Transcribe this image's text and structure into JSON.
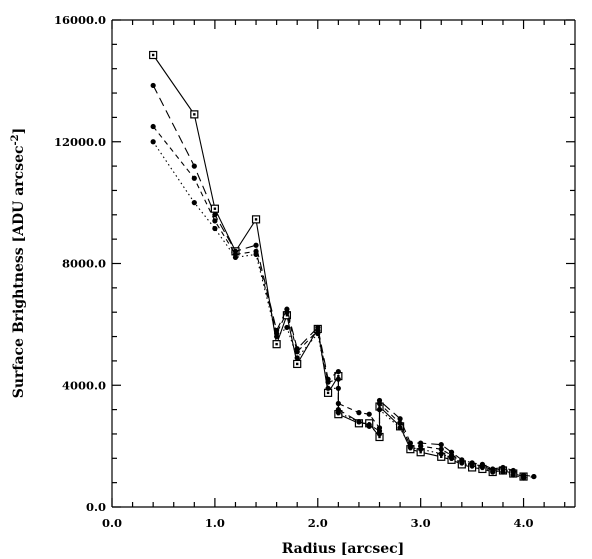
{
  "chart_data": {
    "type": "line",
    "xlabel": "Radius [arcsec]",
    "ylabel": "Surface Brightness [ADU arcsec",
    "ylabel_sup": "-2",
    "ylabel_end": "]",
    "xlim": [
      0,
      4.5
    ],
    "ylim": [
      0,
      16000
    ],
    "x_ticks": [
      0,
      1,
      2,
      3,
      4
    ],
    "x_tick_labels": [
      "0.0",
      "1.0",
      "2.0",
      "3.0",
      "4.0"
    ],
    "y_ticks": [
      0,
      4000,
      8000,
      12000,
      16000
    ],
    "y_tick_labels": [
      "0.0",
      "4000.0",
      "8000.0",
      "12000.0",
      "16000.0"
    ],
    "grid": false,
    "series": [
      {
        "style": "solid",
        "marker": "square",
        "points": [
          [
            0.4,
            14850
          ],
          [
            0.8,
            12900
          ],
          [
            1.0,
            9800
          ],
          [
            1.2,
            8400
          ],
          [
            1.4,
            9450
          ],
          [
            1.6,
            5350
          ],
          [
            1.7,
            6300
          ],
          [
            1.8,
            4700
          ],
          [
            2.0,
            5850
          ],
          [
            2.1,
            3750
          ],
          [
            2.2,
            4300
          ],
          [
            2.2,
            3050
          ],
          [
            2.4,
            2750
          ],
          [
            2.5,
            2750
          ],
          [
            2.6,
            2300
          ],
          [
            2.6,
            3300
          ],
          [
            2.8,
            2650
          ],
          [
            2.9,
            1900
          ],
          [
            3.0,
            1800
          ],
          [
            3.2,
            1650
          ],
          [
            3.3,
            1550
          ],
          [
            3.4,
            1400
          ],
          [
            3.5,
            1300
          ],
          [
            3.6,
            1250
          ],
          [
            3.7,
            1150
          ],
          [
            3.8,
            1200
          ],
          [
            3.9,
            1100
          ],
          [
            4.0,
            1000
          ]
        ]
      },
      {
        "style": "longdash",
        "marker": "dot",
        "points": [
          [
            0.4,
            13850
          ],
          [
            0.8,
            11200
          ],
          [
            1.0,
            9600
          ],
          [
            1.2,
            8400
          ],
          [
            1.4,
            8600
          ],
          [
            1.6,
            5800
          ],
          [
            1.7,
            6500
          ],
          [
            1.8,
            5200
          ],
          [
            2.0,
            5900
          ],
          [
            2.1,
            4200
          ],
          [
            2.2,
            4450
          ],
          [
            2.2,
            3200
          ],
          [
            2.4,
            2800
          ],
          [
            2.5,
            2700
          ],
          [
            2.6,
            2500
          ],
          [
            2.6,
            3500
          ],
          [
            2.8,
            2900
          ],
          [
            2.9,
            2100
          ],
          [
            3.0,
            2100
          ],
          [
            3.2,
            2050
          ],
          [
            3.3,
            1800
          ],
          [
            3.4,
            1550
          ],
          [
            3.5,
            1450
          ],
          [
            3.6,
            1400
          ],
          [
            3.7,
            1250
          ],
          [
            3.8,
            1300
          ],
          [
            3.9,
            1200
          ],
          [
            4.0,
            1050
          ],
          [
            4.1,
            1000
          ]
        ]
      },
      {
        "style": "dashed",
        "marker": "dot",
        "points": [
          [
            0.4,
            12500
          ],
          [
            0.8,
            10800
          ],
          [
            1.0,
            9400
          ],
          [
            1.2,
            8300
          ],
          [
            1.4,
            8400
          ],
          [
            1.6,
            5700
          ],
          [
            1.7,
            6400
          ],
          [
            1.8,
            5100
          ],
          [
            2.0,
            5800
          ],
          [
            2.1,
            4100
          ],
          [
            2.2,
            4200
          ],
          [
            2.2,
            3400
          ],
          [
            2.4,
            3100
          ],
          [
            2.5,
            3050
          ],
          [
            2.6,
            2600
          ],
          [
            2.6,
            3400
          ],
          [
            2.8,
            2750
          ],
          [
            2.9,
            2000
          ],
          [
            3.0,
            2000
          ],
          [
            3.2,
            1900
          ],
          [
            3.3,
            1700
          ],
          [
            3.4,
            1500
          ],
          [
            3.5,
            1400
          ],
          [
            3.6,
            1350
          ],
          [
            3.7,
            1200
          ],
          [
            3.8,
            1250
          ],
          [
            3.9,
            1150
          ],
          [
            4.0,
            1000
          ]
        ]
      },
      {
        "style": "dotted",
        "marker": "dot",
        "points": [
          [
            0.4,
            12000
          ],
          [
            0.8,
            10000
          ],
          [
            1.0,
            9150
          ],
          [
            1.2,
            8200
          ],
          [
            1.4,
            8300
          ],
          [
            1.6,
            5600
          ],
          [
            1.7,
            5900
          ],
          [
            1.8,
            4900
          ],
          [
            2.0,
            5700
          ],
          [
            2.1,
            3900
          ],
          [
            2.2,
            3900
          ],
          [
            2.2,
            3100
          ],
          [
            2.4,
            2800
          ],
          [
            2.5,
            2650
          ],
          [
            2.6,
            2400
          ],
          [
            2.6,
            3200
          ],
          [
            2.8,
            2600
          ],
          [
            2.9,
            1950
          ],
          [
            3.0,
            1900
          ],
          [
            3.2,
            1750
          ],
          [
            3.3,
            1600
          ],
          [
            3.4,
            1450
          ],
          [
            3.5,
            1350
          ],
          [
            3.6,
            1300
          ],
          [
            3.7,
            1150
          ],
          [
            3.8,
            1150
          ],
          [
            3.9,
            1050
          ],
          [
            4.0,
            950
          ],
          [
            4.1,
            1000
          ]
        ]
      }
    ]
  }
}
